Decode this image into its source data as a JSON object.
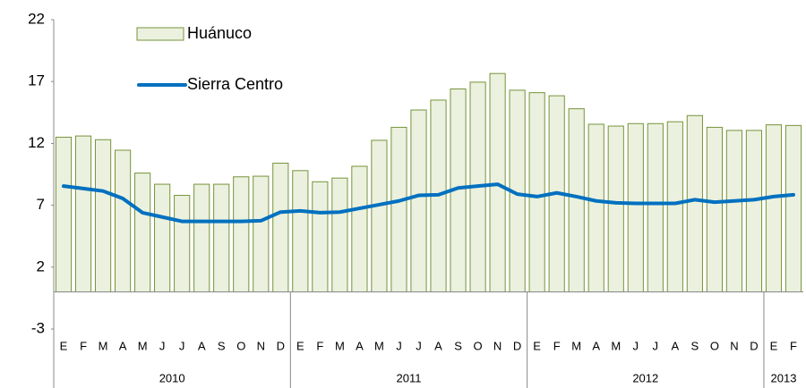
{
  "chart_data": {
    "type": "bar_line",
    "categories": [
      "E",
      "F",
      "M",
      "A",
      "M",
      "J",
      "J",
      "A",
      "S",
      "O",
      "N",
      "D",
      "E",
      "F",
      "M",
      "A",
      "M",
      "J",
      "J",
      "A",
      "S",
      "O",
      "N",
      "D",
      "E",
      "F",
      "M",
      "A",
      "M",
      "J",
      "J",
      "A",
      "S",
      "O",
      "N",
      "D",
      "E",
      "F"
    ],
    "x_groups": [
      {
        "label": "2010",
        "count": 12
      },
      {
        "label": "2011",
        "count": 12
      },
      {
        "label": "2012",
        "count": 12
      },
      {
        "label": "2013",
        "count": 2
      }
    ],
    "series": [
      {
        "name": "Huánuco",
        "kind": "bar",
        "color": "#ebf1de",
        "edge_color": "#77933c",
        "values": [
          12.5,
          12.6,
          12.3,
          11.45,
          9.6,
          8.7,
          7.8,
          8.7,
          8.7,
          9.3,
          9.35,
          10.4,
          9.8,
          8.9,
          9.2,
          10.15,
          12.25,
          13.3,
          14.7,
          15.5,
          16.4,
          16.95,
          17.65,
          16.3,
          16.1,
          15.85,
          14.8,
          13.55,
          13.4,
          13.6,
          13.6,
          13.75,
          14.25,
          13.3,
          13.05,
          13.05,
          13.5,
          13.45
        ]
      },
      {
        "name": "Sierra Centro",
        "kind": "line",
        "color": "#0070c0",
        "values": [
          8.55,
          8.35,
          8.15,
          7.55,
          6.4,
          6.05,
          5.7,
          5.7,
          5.7,
          5.7,
          5.75,
          6.45,
          6.55,
          6.4,
          6.45,
          6.75,
          7.05,
          7.35,
          7.8,
          7.85,
          8.4,
          8.55,
          8.7,
          7.9,
          7.7,
          8.0,
          7.7,
          7.35,
          7.2,
          7.15,
          7.15,
          7.15,
          7.45,
          7.25,
          7.35,
          7.45,
          7.7,
          7.85
        ]
      }
    ],
    "ylim": [
      -3,
      22
    ],
    "yticks": [
      -3,
      2,
      7,
      12,
      17,
      22
    ],
    "grid": false
  }
}
